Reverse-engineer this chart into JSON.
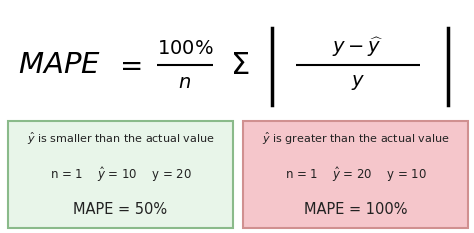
{
  "bg_color": "#ffffff",
  "box_left_bg": "#e8f5e9",
  "box_left_border": "#8aba8a",
  "box_right_bg": "#f5c6cb",
  "box_right_border": "#d09090",
  "box_left_title": "$\\hat{y}$ is smaller than the actual value",
  "box_left_vars": "n = 1    $\\hat{y}$ = 10    y = 20",
  "box_left_result": "MAPE = 50%",
  "box_right_title": "$\\hat{y}$ is greater than the actual value",
  "box_right_vars": "n = 1    $\\hat{y}$ = 20    y = 10",
  "box_right_result": "MAPE = 100%"
}
